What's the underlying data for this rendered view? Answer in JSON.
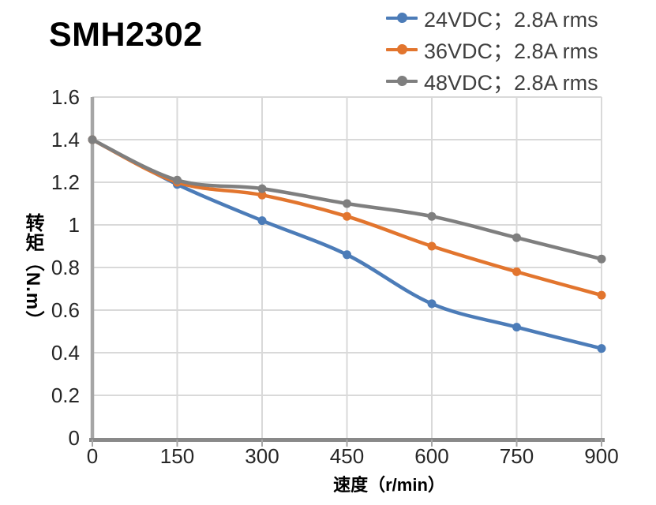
{
  "title": "SMH2302",
  "chart_data": {
    "type": "line",
    "title": "SMH2302",
    "x": [
      0,
      150,
      300,
      450,
      600,
      750,
      900
    ],
    "series": [
      {
        "name": "24VDC；2.8A rms",
        "color": "#4C7CB8",
        "values": [
          1.4,
          1.19,
          1.02,
          0.86,
          0.63,
          0.52,
          0.42
        ]
      },
      {
        "name": "36VDC；2.8A rms",
        "color": "#E2752E",
        "values": [
          1.4,
          1.2,
          1.14,
          1.04,
          0.9,
          0.78,
          0.67
        ]
      },
      {
        "name": "48VDC；2.8A rms",
        "color": "#7F7F7F",
        "values": [
          1.4,
          1.21,
          1.17,
          1.1,
          1.04,
          0.94,
          0.84
        ]
      }
    ],
    "xlabel": "速度（r/min）",
    "ylabel": "转矩（N.m）",
    "xticks": [
      0,
      150,
      300,
      450,
      600,
      750,
      900
    ],
    "yticks": [
      0,
      0.2,
      0.4,
      0.6,
      0.8,
      1,
      1.2,
      1.4,
      1.6
    ],
    "xlim": [
      0,
      900
    ],
    "ylim": [
      0,
      1.6
    ],
    "grid": true,
    "smooth": true,
    "marker": "circle",
    "legend_position": "top-right",
    "style": {
      "gridline_color": "#D9D9D9",
      "y_axis_color": "#A6A6A6",
      "x_axis_color": "#898989",
      "tick_label_color": "#262626",
      "legend_text_color": "#3F3F3F",
      "background": "#FFFFFF"
    }
  }
}
